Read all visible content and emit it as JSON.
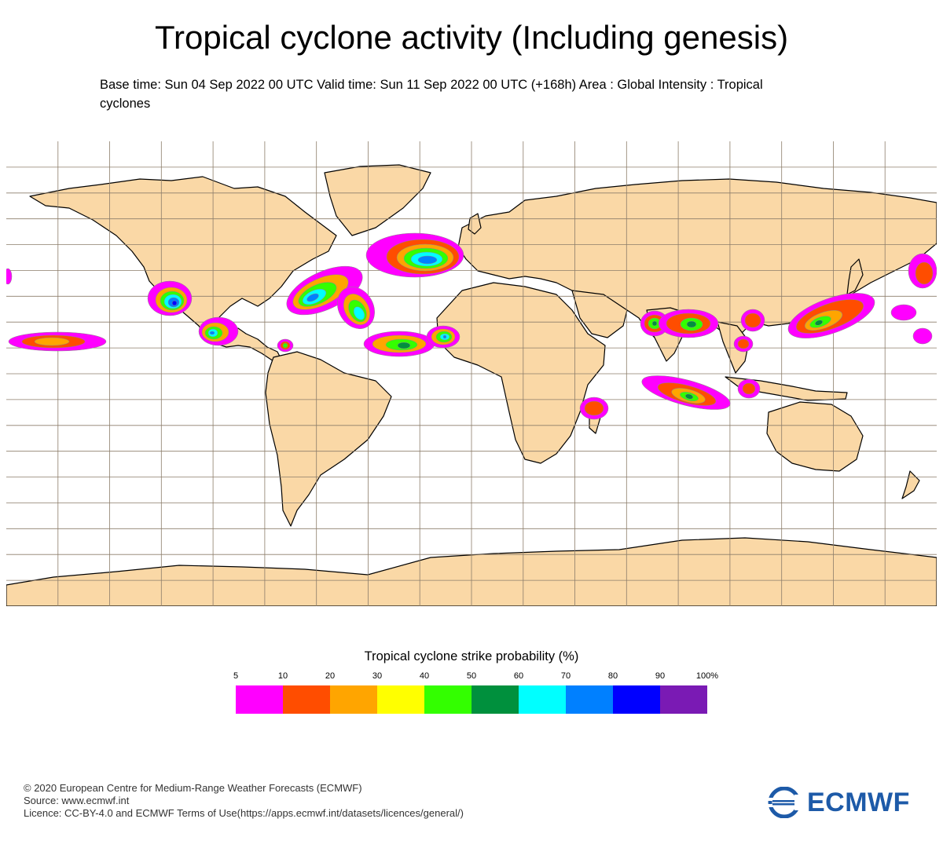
{
  "header": {
    "title": "Tropical cyclone activity (Including genesis)",
    "subtitle": "Base time: Sun 04 Sep 2022 00 UTC Valid time: Sun 11 Sep 2022 00 UTC (+168h) Area : Global Intensity : Tropical cyclones"
  },
  "map": {
    "land_color": "#fad8a6",
    "ocean_color": "#ffffff",
    "grid_color": "#8c7d6a",
    "coast_color": "#000000",
    "palette": [
      "#ff00ff",
      "#ff4d00",
      "#ffa500",
      "#ffff00",
      "#33ff00",
      "#00903d",
      "#00ffff",
      "#0080ff",
      "#0000ff",
      "#7a1ab4"
    ]
  },
  "legend": {
    "title": "Tropical cyclone strike probability (%)",
    "ticks": [
      "5",
      "10",
      "20",
      "30",
      "40",
      "50",
      "60",
      "70",
      "80",
      "90",
      "100%"
    ],
    "colors": [
      "#ff00ff",
      "#ff4d00",
      "#ffa500",
      "#ffff00",
      "#33ff00",
      "#00903d",
      "#00ffff",
      "#0080ff",
      "#0000ff",
      "#7a1ab4"
    ]
  },
  "footer": {
    "copyright": "© 2020 European Centre for Medium-Range Weather Forecasts (ECMWF)",
    "source": "Source: www.ecmwf.int",
    "licence": "Licence: CC-BY-4.0 and ECMWF Terms of Use(https://apps.ecmwf.int/datasets/licences/general/)"
  },
  "logo": {
    "text": "ECMWF",
    "color": "#1d5aa8"
  }
}
